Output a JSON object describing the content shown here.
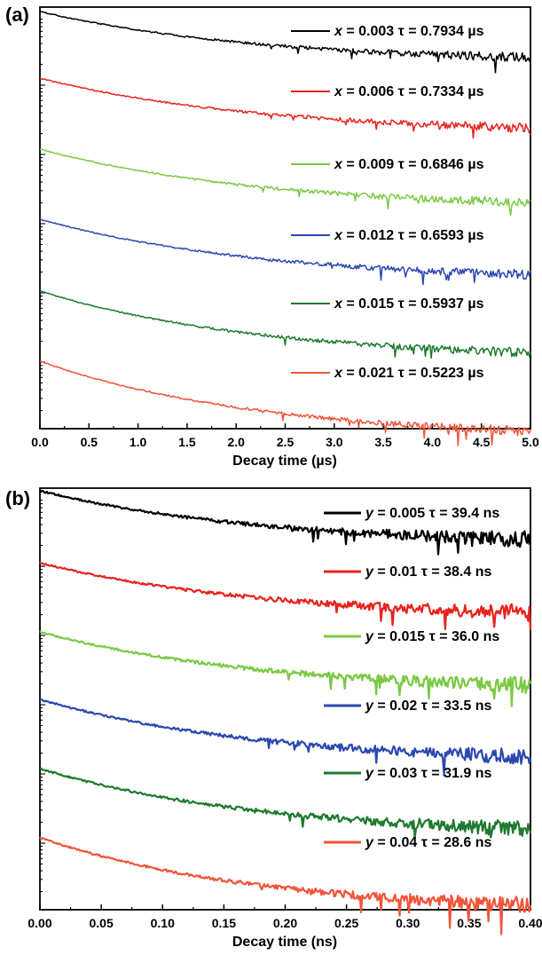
{
  "chart_data": [
    {
      "type": "line",
      "panel_label": "(a)",
      "xlabel": "Decay time (µs)",
      "xlim": [
        0,
        5
      ],
      "xticks": [
        "0.0",
        "0.5",
        "1.0",
        "1.5",
        "2.0",
        "2.5",
        "3.0",
        "3.5",
        "4.0",
        "4.5",
        "5.0"
      ],
      "series": [
        {
          "name": "x = 0.003 τ = 0.7934 µs",
          "var": "x",
          "value_text": " = 0.003 ",
          "tau_text": "τ = 0.7934 µs",
          "tau": 0.7934,
          "color": "#000000"
        },
        {
          "name": "x = 0.006 τ = 0.7334 µs",
          "var": "x",
          "value_text": " = 0.006 ",
          "tau_text": "τ = 0.7334 µs",
          "tau": 0.7334,
          "color": "#e8231e"
        },
        {
          "name": "x = 0.009 τ = 0.6846 µs",
          "var": "x",
          "value_text": " = 0.009 ",
          "tau_text": "τ = 0.6846 µs",
          "tau": 0.6846,
          "color": "#7ac943"
        },
        {
          "name": "x = 0.012 τ = 0.6593 µs",
          "var": "x",
          "value_text": " = 0.012 ",
          "tau_text": "τ = 0.6593 µs",
          "tau": 0.6593,
          "color": "#2b48b0"
        },
        {
          "name": "x = 0.015 τ = 0.5937 µs",
          "var": "x",
          "value_text": " = 0.015 ",
          "tau_text": "τ = 0.5937 µs",
          "tau": 0.5937,
          "color": "#1e7a2e"
        },
        {
          "name": "x = 0.021 τ = 0.5223 µs",
          "var": "x",
          "value_text": " = 0.021 ",
          "tau_text": "τ = 0.5223 µs",
          "tau": 0.5223,
          "color": "#f0553a"
        }
      ]
    },
    {
      "type": "line",
      "panel_label": "(b)",
      "xlabel": "Decay time (ns)",
      "xlim": [
        0,
        0.4
      ],
      "xticks": [
        "0.00",
        "0.05",
        "0.10",
        "0.15",
        "0.20",
        "0.25",
        "0.30",
        "0.35",
        "0.40"
      ],
      "series": [
        {
          "name": "y = 0.005 τ = 39.4 ns",
          "var": "y",
          "value_text": " = 0.005 ",
          "tau_text": "τ = 39.4 ns",
          "tau": 39.4,
          "color": "#000000"
        },
        {
          "name": "y = 0.01 τ = 38.4 ns",
          "var": "y",
          "value_text": " = 0.01 ",
          "tau_text": "τ = 38.4 ns",
          "tau": 38.4,
          "color": "#e8231e"
        },
        {
          "name": "y = 0.015 τ = 36.0 ns",
          "var": "y",
          "value_text": " = 0.015 ",
          "tau_text": "τ = 36.0 ns",
          "tau": 36.0,
          "color": "#7ac943"
        },
        {
          "name": "y = 0.02 τ = 33.5 ns",
          "var": "y",
          "value_text": " = 0.02 ",
          "tau_text": "τ = 33.5 ns",
          "tau": 33.5,
          "color": "#2b48b0"
        },
        {
          "name": "y = 0.03 τ = 31.9 ns",
          "var": "y",
          "value_text": " = 0.03 ",
          "tau_text": "τ = 31.9 ns",
          "tau": 31.9,
          "color": "#1e7a2e"
        },
        {
          "name": "y = 0.04 τ = 28.6 ns",
          "var": "y",
          "value_text": " = 0.04 ",
          "tau_text": "τ = 28.6 ns",
          "tau": 28.6,
          "color": "#f0553a"
        }
      ]
    }
  ]
}
